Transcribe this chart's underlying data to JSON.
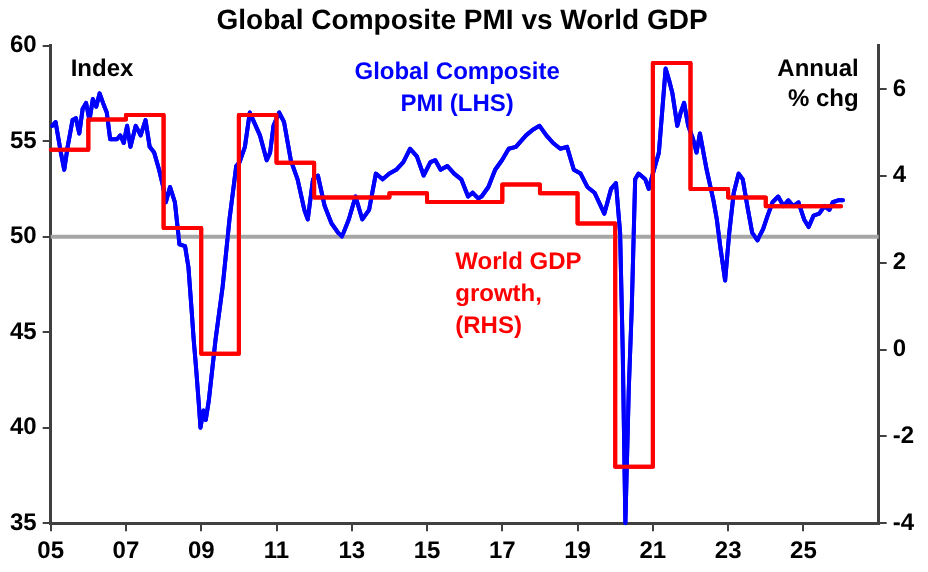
{
  "chart_data": {
    "type": "line",
    "title": "Global Composite PMI vs World GDP",
    "annotations": [
      "Index",
      "Annual % chg"
    ],
    "xlim": [
      2005,
      2027
    ],
    "xticks": [
      {
        "value": 2005,
        "label": "05"
      },
      {
        "value": 2007,
        "label": "07"
      },
      {
        "value": 2009,
        "label": "09"
      },
      {
        "value": 2011,
        "label": "11"
      },
      {
        "value": 2013,
        "label": "13"
      },
      {
        "value": 2015,
        "label": "15"
      },
      {
        "value": 2017,
        "label": "17"
      },
      {
        "value": 2019,
        "label": "19"
      },
      {
        "value": 2021,
        "label": "21"
      },
      {
        "value": 2023,
        "label": "23"
      },
      {
        "value": 2025,
        "label": "25"
      }
    ],
    "ylim": [
      35,
      60
    ],
    "yticks": [
      35,
      40,
      45,
      50,
      55,
      60
    ],
    "y2lim": [
      -4,
      7
    ],
    "y2ticks": [
      -4,
      -2,
      0,
      2,
      4,
      6
    ],
    "ref_lines": [
      {
        "axis": "y",
        "value": 50,
        "color": "#a6a6a6"
      }
    ],
    "series": [
      {
        "name": "Global Composite PMI (LHS)",
        "color": "#0000ff",
        "type": "line",
        "x": [
          2005.04,
          2005.13,
          2005.27,
          2005.36,
          2005.45,
          2005.58,
          2005.67,
          2005.76,
          2005.85,
          2005.94,
          2006.03,
          2006.12,
          2006.21,
          2006.3,
          2006.39,
          2006.49,
          2006.58,
          2006.76,
          2006.85,
          2006.94,
          2007.03,
          2007.12,
          2007.26,
          2007.39,
          2007.52,
          2007.63,
          2007.75,
          2007.88,
          2007.99,
          2008.06,
          2008.17,
          2008.3,
          2008.42,
          2008.57,
          2008.66,
          2008.75,
          2008.8,
          2008.86,
          2008.93,
          2008.98,
          2009.06,
          2009.12,
          2009.2,
          2009.38,
          2009.57,
          2009.75,
          2009.93,
          2010.02,
          2010.16,
          2010.29,
          2010.38,
          2010.56,
          2010.74,
          2010.83,
          2010.92,
          2011.07,
          2011.2,
          2011.38,
          2011.56,
          2011.74,
          2011.83,
          2011.97,
          2012.1,
          2012.28,
          2012.46,
          2012.64,
          2012.74,
          2012.92,
          2013.1,
          2013.28,
          2013.46,
          2013.64,
          2013.82,
          2014.0,
          2014.18,
          2014.37,
          2014.55,
          2014.73,
          2014.91,
          2015.09,
          2015.22,
          2015.36,
          2015.54,
          2015.72,
          2015.91,
          2016.09,
          2016.21,
          2016.36,
          2016.45,
          2016.63,
          2016.81,
          2016.99,
          2017.17,
          2017.36,
          2017.63,
          2017.81,
          2017.99,
          2018.17,
          2018.35,
          2018.54,
          2018.72,
          2018.9,
          2019.08,
          2019.26,
          2019.45,
          2019.71,
          2019.89,
          2020.02,
          2020.13,
          2020.2,
          2020.27,
          2020.36,
          2020.44,
          2020.53,
          2020.62,
          2020.8,
          2020.89,
          2021.03,
          2021.16,
          2021.34,
          2021.43,
          2021.52,
          2021.65,
          2021.74,
          2021.83,
          2021.94,
          2022.07,
          2022.16,
          2022.25,
          2022.43,
          2022.61,
          2022.7,
          2022.79,
          2022.92,
          2023.03,
          2023.15,
          2023.28,
          2023.39,
          2023.51,
          2023.64,
          2023.78,
          2023.93,
          2024.05,
          2024.18,
          2024.33,
          2024.47,
          2024.6,
          2024.73,
          2024.87,
          2025.02,
          2025.14,
          2025.27,
          2025.42,
          2025.56,
          2025.69,
          2025.78,
          2025.92,
          2026.05
        ],
        "values": [
          55.8,
          56.0,
          54.4,
          53.5,
          54.7,
          56.1,
          56.2,
          55.4,
          56.7,
          57.0,
          56.1,
          57.2,
          56.8,
          57.5,
          57.0,
          56.5,
          55.1,
          55.1,
          55.3,
          54.9,
          55.8,
          54.7,
          55.8,
          55.3,
          56.1,
          54.7,
          54.4,
          53.5,
          52.6,
          51.8,
          52.6,
          51.8,
          49.6,
          49.5,
          48.4,
          46.0,
          44.6,
          43.2,
          41.4,
          40.0,
          40.9,
          40.4,
          41.4,
          44.6,
          47.4,
          50.9,
          53.7,
          53.9,
          54.7,
          56.5,
          56.1,
          55.3,
          54.0,
          54.4,
          55.8,
          56.5,
          56.0,
          54.0,
          53.0,
          51.4,
          50.9,
          53.0,
          53.2,
          51.6,
          50.7,
          50.2,
          50.0,
          50.9,
          52.1,
          50.9,
          51.4,
          53.3,
          53.0,
          53.3,
          53.5,
          53.9,
          54.6,
          54.2,
          53.2,
          53.9,
          54.0,
          53.5,
          53.7,
          53.3,
          53.0,
          52.1,
          52.3,
          52.0,
          52.1,
          52.6,
          53.5,
          54.0,
          54.6,
          54.7,
          55.3,
          55.6,
          55.8,
          55.3,
          54.9,
          54.6,
          54.7,
          53.5,
          53.3,
          52.6,
          52.3,
          51.2,
          52.5,
          52.8,
          50.2,
          44.0,
          35.0,
          42.0,
          46.3,
          53.0,
          53.3,
          53.0,
          52.5,
          53.5,
          54.4,
          58.8,
          58.2,
          57.5,
          55.8,
          56.5,
          57.0,
          55.8,
          55.1,
          54.4,
          55.4,
          53.5,
          51.9,
          50.9,
          49.5,
          47.7,
          50.2,
          52.3,
          53.3,
          53.0,
          51.6,
          50.2,
          49.8,
          50.4,
          51.1,
          51.8,
          52.1,
          51.6,
          51.9,
          51.6,
          51.8,
          50.9,
          50.5,
          51.1,
          51.2,
          51.6,
          51.4,
          51.8,
          51.9,
          51.9
        ]
      },
      {
        "name": "World GDP growth, (RHS)",
        "color": "#ff0000",
        "type": "step",
        "axis": "y2",
        "x": [
          2005,
          2006,
          2007,
          2008,
          2009,
          2010,
          2011,
          2012,
          2014,
          2015,
          2017,
          2018,
          2019,
          2020,
          2021,
          2022,
          2023,
          2024,
          2026
        ],
        "values": [
          4.6,
          5.3,
          5.4,
          2.8,
          -0.1,
          5.4,
          4.3,
          3.5,
          3.6,
          3.4,
          3.8,
          3.6,
          2.9,
          -2.7,
          6.6,
          3.7,
          3.5,
          3.3,
          3.3
        ]
      }
    ]
  }
}
